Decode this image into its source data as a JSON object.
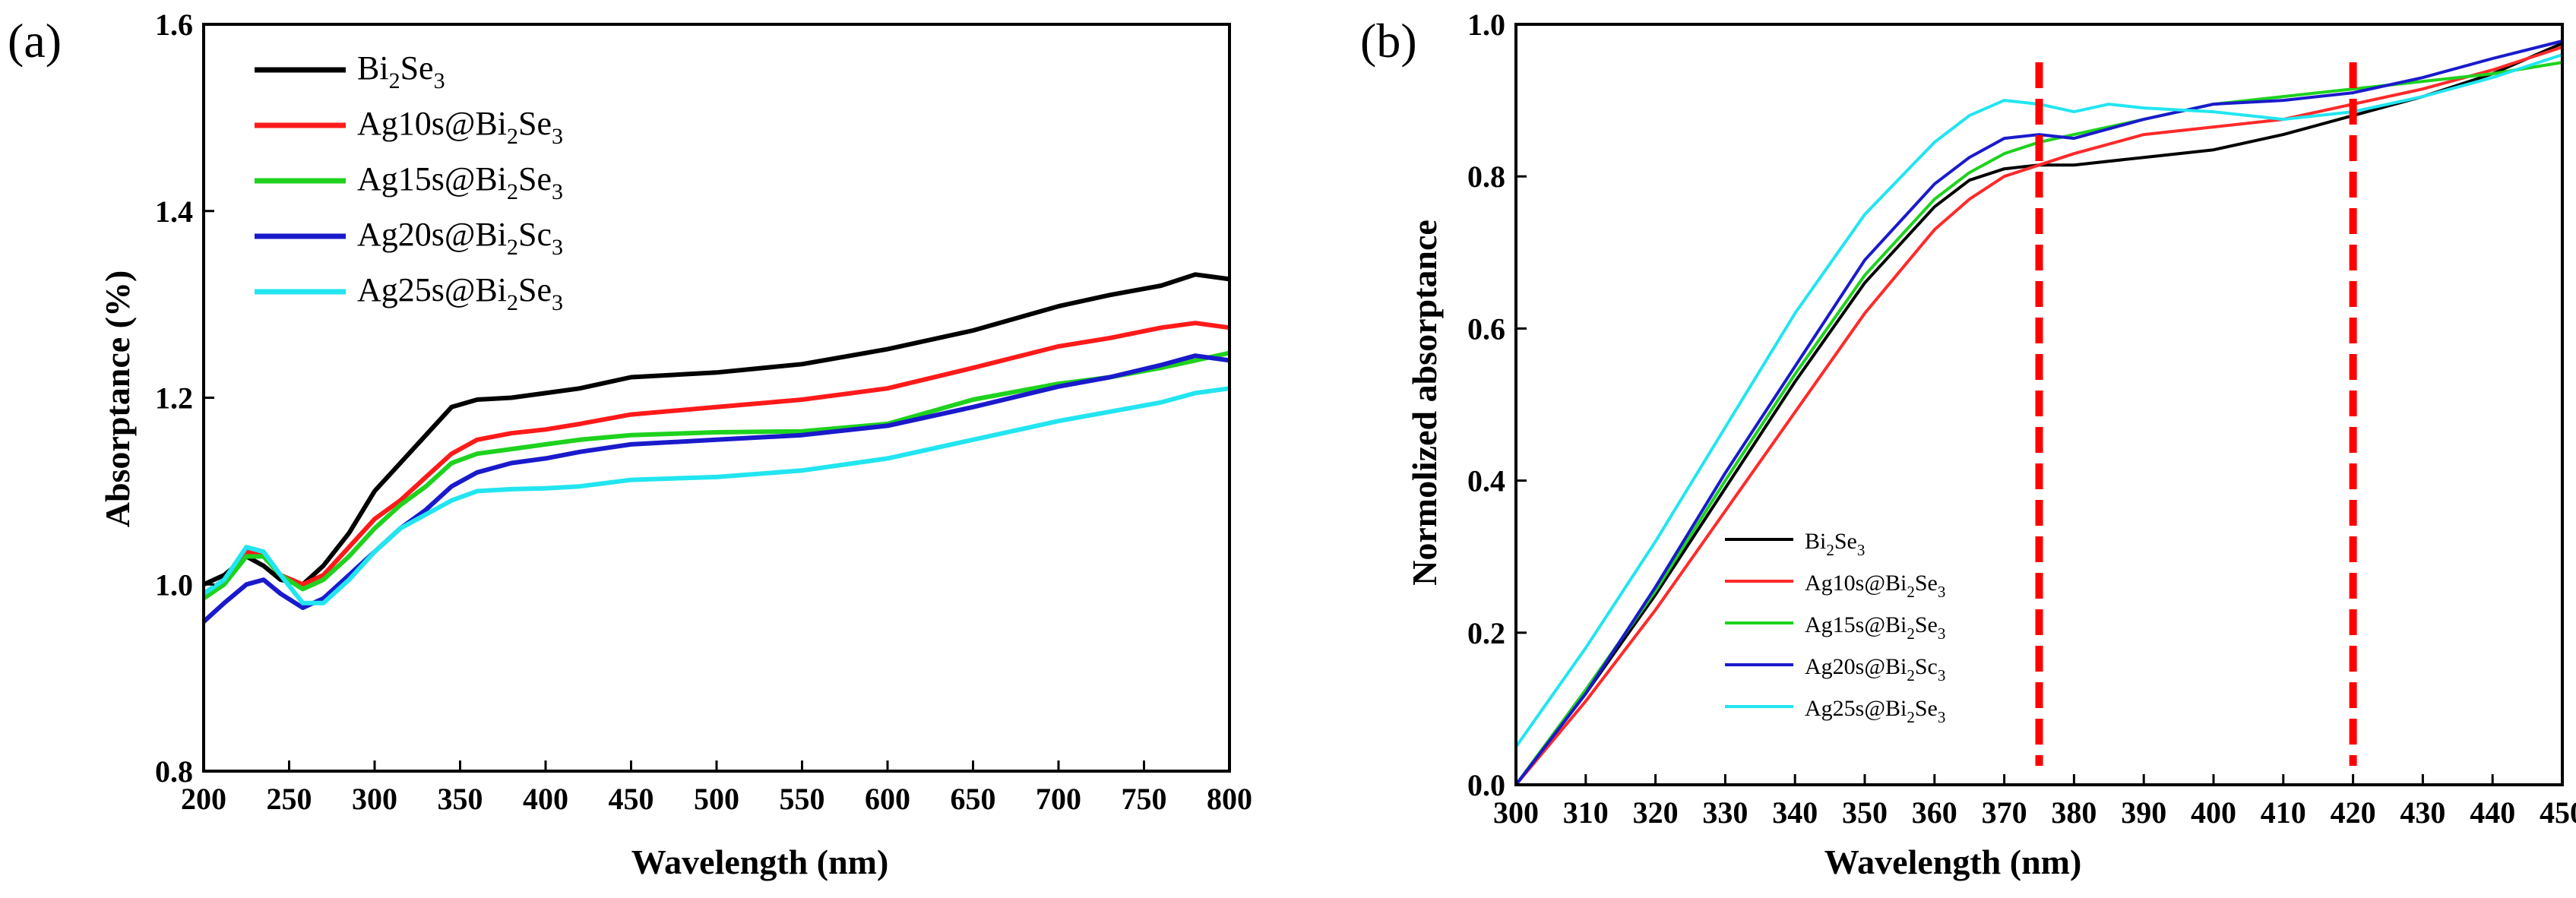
{
  "chart_data": [
    {
      "type": "line",
      "panel_label": "(a)",
      "xlabel": "Wavelength (nm)",
      "ylabel": "Absorptance (%)",
      "xlim": [
        200,
        800
      ],
      "ylim": [
        0.8,
        1.6
      ],
      "x_ticks": [
        "200",
        "250",
        "300",
        "350",
        "400",
        "450",
        "500",
        "550",
        "600",
        "650",
        "700",
        "750",
        "800"
      ],
      "y_ticks": [
        "0.8",
        "1.0",
        "1.2",
        "1.4",
        "1.6"
      ],
      "legend_position": "top-left",
      "series": [
        {
          "name": "Bi2Se3",
          "legend": {
            "pre": "Bi",
            "sub1": "2",
            "mid": "Se",
            "sub2": "3"
          },
          "color": "#000000",
          "points": [
            [
              200,
              1.0
            ],
            [
              212,
              1.01
            ],
            [
              225,
              1.03
            ],
            [
              235,
              1.02
            ],
            [
              245,
              1.005
            ],
            [
              258,
              1.0
            ],
            [
              270,
              1.02
            ],
            [
              285,
              1.055
            ],
            [
              300,
              1.1
            ],
            [
              315,
              1.13
            ],
            [
              330,
              1.16
            ],
            [
              345,
              1.19
            ],
            [
              360,
              1.198
            ],
            [
              380,
              1.2
            ],
            [
              400,
              1.205
            ],
            [
              420,
              1.21
            ],
            [
              450,
              1.222
            ],
            [
              500,
              1.227
            ],
            [
              550,
              1.236
            ],
            [
              600,
              1.252
            ],
            [
              650,
              1.272
            ],
            [
              700,
              1.298
            ],
            [
              730,
              1.31
            ],
            [
              760,
              1.32
            ],
            [
              780,
              1.332
            ],
            [
              800,
              1.327
            ]
          ]
        },
        {
          "name": "Ag10s@Bi2Se3",
          "legend": {
            "pre": "Ag10s@Bi",
            "sub1": "2",
            "mid": "Se",
            "sub2": "3"
          },
          "color": "#ff1a1a",
          "points": [
            [
              200,
              0.99
            ],
            [
              212,
              1.005
            ],
            [
              225,
              1.035
            ],
            [
              235,
              1.03
            ],
            [
              245,
              1.01
            ],
            [
              258,
              1.0
            ],
            [
              270,
              1.01
            ],
            [
              285,
              1.04
            ],
            [
              300,
              1.07
            ],
            [
              315,
              1.09
            ],
            [
              330,
              1.115
            ],
            [
              345,
              1.14
            ],
            [
              360,
              1.155
            ],
            [
              380,
              1.162
            ],
            [
              400,
              1.166
            ],
            [
              420,
              1.172
            ],
            [
              450,
              1.182
            ],
            [
              500,
              1.19
            ],
            [
              550,
              1.198
            ],
            [
              600,
              1.21
            ],
            [
              650,
              1.232
            ],
            [
              700,
              1.255
            ],
            [
              730,
              1.264
            ],
            [
              760,
              1.275
            ],
            [
              780,
              1.28
            ],
            [
              800,
              1.275
            ]
          ]
        },
        {
          "name": "Ag15s@Bi2Se3",
          "legend": {
            "pre": "Ag15s@Bi",
            "sub1": "2",
            "mid": "Se",
            "sub2": "3"
          },
          "color": "#1ed21e",
          "points": [
            [
              200,
              0.985
            ],
            [
              212,
              1.0
            ],
            [
              225,
              1.03
            ],
            [
              235,
              1.03
            ],
            [
              245,
              1.01
            ],
            [
              258,
              0.995
            ],
            [
              270,
              1.005
            ],
            [
              285,
              1.03
            ],
            [
              300,
              1.06
            ],
            [
              315,
              1.085
            ],
            [
              330,
              1.105
            ],
            [
              345,
              1.13
            ],
            [
              360,
              1.14
            ],
            [
              380,
              1.145
            ],
            [
              400,
              1.15
            ],
            [
              420,
              1.155
            ],
            [
              450,
              1.16
            ],
            [
              500,
              1.163
            ],
            [
              550,
              1.164
            ],
            [
              600,
              1.172
            ],
            [
              650,
              1.198
            ],
            [
              700,
              1.215
            ],
            [
              730,
              1.222
            ],
            [
              760,
              1.232
            ],
            [
              780,
              1.24
            ],
            [
              800,
              1.248
            ]
          ]
        },
        {
          "name": "Ag20s@Bi2Sc3",
          "legend": {
            "pre": "Ag20s@Bi",
            "sub1": "2",
            "mid": "Sc",
            "sub2": "3"
          },
          "color": "#1a1acc",
          "points": [
            [
              200,
              0.96
            ],
            [
              212,
              0.98
            ],
            [
              225,
              1.0
            ],
            [
              235,
              1.005
            ],
            [
              245,
              0.99
            ],
            [
              258,
              0.975
            ],
            [
              270,
              0.985
            ],
            [
              285,
              1.01
            ],
            [
              300,
              1.035
            ],
            [
              315,
              1.06
            ],
            [
              330,
              1.08
            ],
            [
              345,
              1.105
            ],
            [
              360,
              1.12
            ],
            [
              380,
              1.13
            ],
            [
              400,
              1.135
            ],
            [
              420,
              1.142
            ],
            [
              450,
              1.15
            ],
            [
              500,
              1.155
            ],
            [
              550,
              1.16
            ],
            [
              600,
              1.17
            ],
            [
              650,
              1.19
            ],
            [
              700,
              1.212
            ],
            [
              730,
              1.222
            ],
            [
              760,
              1.235
            ],
            [
              780,
              1.245
            ],
            [
              800,
              1.24
            ]
          ]
        },
        {
          "name": "Ag25s@Bi2Se3",
          "legend": {
            "pre": "Ag25s@Bi",
            "sub1": "2",
            "mid": "Se",
            "sub2": "3"
          },
          "color": "#22e5f0",
          "points": [
            [
              200,
              0.99
            ],
            [
              212,
              1.005
            ],
            [
              225,
              1.04
            ],
            [
              235,
              1.035
            ],
            [
              245,
              1.01
            ],
            [
              258,
              0.98
            ],
            [
              270,
              0.98
            ],
            [
              285,
              1.005
            ],
            [
              300,
              1.035
            ],
            [
              315,
              1.06
            ],
            [
              330,
              1.075
            ],
            [
              345,
              1.09
            ],
            [
              360,
              1.1
            ],
            [
              380,
              1.102
            ],
            [
              400,
              1.103
            ],
            [
              420,
              1.105
            ],
            [
              450,
              1.112
            ],
            [
              500,
              1.115
            ],
            [
              550,
              1.122
            ],
            [
              600,
              1.135
            ],
            [
              650,
              1.155
            ],
            [
              700,
              1.175
            ],
            [
              730,
              1.185
            ],
            [
              760,
              1.195
            ],
            [
              780,
              1.205
            ],
            [
              800,
              1.21
            ]
          ]
        }
      ]
    },
    {
      "type": "line",
      "panel_label": "(b)",
      "xlabel": "Wavelength (nm)",
      "ylabel": "Normolized absorptance",
      "xlim": [
        300,
        450
      ],
      "ylim": [
        0.0,
        1.0
      ],
      "x_ticks": [
        "300",
        "310",
        "320",
        "330",
        "340",
        "350",
        "360",
        "370",
        "380",
        "390",
        "400",
        "410",
        "420",
        "430",
        "440",
        "450"
      ],
      "y_ticks": [
        "0.0",
        "0.2",
        "0.4",
        "0.6",
        "0.8",
        "1.0"
      ],
      "legend_position": "bottom-left",
      "reference_lines": [
        {
          "x": 375,
          "color": "#ff0000",
          "style": "dashed"
        },
        {
          "x": 420,
          "color": "#ff0000",
          "style": "dashed"
        }
      ],
      "series": [
        {
          "name": "Bi2Se3",
          "legend": {
            "pre": "Bi",
            "sub1": "2",
            "mid": "Se",
            "sub2": "3"
          },
          "color": "#000000",
          "points": [
            [
              300,
              0.0
            ],
            [
              310,
              0.12
            ],
            [
              320,
              0.25
            ],
            [
              330,
              0.39
            ],
            [
              340,
              0.53
            ],
            [
              350,
              0.66
            ],
            [
              360,
              0.76
            ],
            [
              365,
              0.795
            ],
            [
              370,
              0.81
            ],
            [
              375,
              0.815
            ],
            [
              380,
              0.815
            ],
            [
              390,
              0.825
            ],
            [
              400,
              0.835
            ],
            [
              410,
              0.855
            ],
            [
              420,
              0.88
            ],
            [
              430,
              0.905
            ],
            [
              440,
              0.935
            ],
            [
              450,
              0.975
            ]
          ]
        },
        {
          "name": "Ag10s@Bi2Se3",
          "legend": {
            "pre": "Ag10s@Bi",
            "sub1": "2",
            "mid": "Se",
            "sub2": "3"
          },
          "color": "#ff2a2a",
          "points": [
            [
              300,
              0.0
            ],
            [
              310,
              0.11
            ],
            [
              320,
              0.23
            ],
            [
              330,
              0.36
            ],
            [
              340,
              0.49
            ],
            [
              350,
              0.62
            ],
            [
              360,
              0.73
            ],
            [
              365,
              0.77
            ],
            [
              370,
              0.8
            ],
            [
              375,
              0.815
            ],
            [
              380,
              0.83
            ],
            [
              390,
              0.855
            ],
            [
              400,
              0.865
            ],
            [
              410,
              0.875
            ],
            [
              420,
              0.895
            ],
            [
              430,
              0.915
            ],
            [
              440,
              0.94
            ],
            [
              450,
              0.97
            ]
          ]
        },
        {
          "name": "Ag15s@Bi2Se3",
          "legend": {
            "pre": "Ag15s@Bi",
            "sub1": "2",
            "mid": "Se",
            "sub2": "3"
          },
          "color": "#1ed21e",
          "points": [
            [
              300,
              0.0
            ],
            [
              310,
              0.125
            ],
            [
              320,
              0.255
            ],
            [
              330,
              0.4
            ],
            [
              340,
              0.54
            ],
            [
              350,
              0.67
            ],
            [
              360,
              0.77
            ],
            [
              365,
              0.805
            ],
            [
              370,
              0.83
            ],
            [
              375,
              0.845
            ],
            [
              380,
              0.855
            ],
            [
              390,
              0.875
            ],
            [
              400,
              0.895
            ],
            [
              410,
              0.905
            ],
            [
              420,
              0.915
            ],
            [
              430,
              0.925
            ],
            [
              440,
              0.935
            ],
            [
              450,
              0.95
            ]
          ]
        },
        {
          "name": "Ag20s@Bi2Sc3",
          "legend": {
            "pre": "Ag20s@Bi",
            "sub1": "2",
            "mid": "Sc",
            "sub2": "3"
          },
          "color": "#1a1acc",
          "points": [
            [
              300,
              0.0
            ],
            [
              310,
              0.12
            ],
            [
              320,
              0.26
            ],
            [
              330,
              0.41
            ],
            [
              340,
              0.55
            ],
            [
              350,
              0.69
            ],
            [
              360,
              0.79
            ],
            [
              365,
              0.825
            ],
            [
              370,
              0.85
            ],
            [
              375,
              0.855
            ],
            [
              380,
              0.85
            ],
            [
              390,
              0.875
            ],
            [
              400,
              0.895
            ],
            [
              410,
              0.9
            ],
            [
              420,
              0.91
            ],
            [
              430,
              0.93
            ],
            [
              440,
              0.955
            ],
            [
              450,
              0.978
            ]
          ]
        },
        {
          "name": "Ag25s@Bi2Se3",
          "legend": {
            "pre": "Ag25s@Bi",
            "sub1": "2",
            "mid": "Se",
            "sub2": "3"
          },
          "color": "#22e5f0",
          "points": [
            [
              300,
              0.05
            ],
            [
              310,
              0.18
            ],
            [
              320,
              0.32
            ],
            [
              330,
              0.47
            ],
            [
              340,
              0.62
            ],
            [
              350,
              0.75
            ],
            [
              360,
              0.845
            ],
            [
              365,
              0.88
            ],
            [
              370,
              0.9
            ],
            [
              375,
              0.895
            ],
            [
              380,
              0.885
            ],
            [
              385,
              0.895
            ],
            [
              390,
              0.89
            ],
            [
              400,
              0.885
            ],
            [
              410,
              0.875
            ],
            [
              420,
              0.885
            ],
            [
              430,
              0.905
            ],
            [
              440,
              0.93
            ],
            [
              450,
              0.96
            ]
          ]
        }
      ]
    }
  ]
}
